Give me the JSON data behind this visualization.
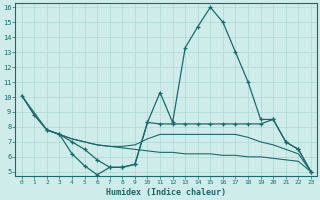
{
  "xlabel": "Humidex (Indice chaleur)",
  "bg_color": "#ceecea",
  "grid_color": "#aed8d5",
  "line_color": "#1a6b6b",
  "xlim": [
    -0.5,
    23.5
  ],
  "ylim": [
    4.7,
    16.3
  ],
  "xticks": [
    0,
    1,
    2,
    3,
    4,
    5,
    6,
    7,
    8,
    9,
    10,
    11,
    12,
    13,
    14,
    15,
    16,
    17,
    18,
    19,
    20,
    21,
    22,
    23
  ],
  "yticks": [
    5,
    6,
    7,
    8,
    9,
    10,
    11,
    12,
    13,
    14,
    15,
    16
  ],
  "lines": [
    {
      "x": [
        0,
        1,
        2,
        3,
        4,
        5,
        6,
        7,
        8,
        9,
        10,
        11,
        12,
        13,
        14,
        15,
        16,
        17,
        18,
        19,
        20,
        21,
        22,
        23
      ],
      "y": [
        10.1,
        8.8,
        7.8,
        7.5,
        6.2,
        5.4,
        4.8,
        5.3,
        5.3,
        5.5,
        8.3,
        10.3,
        8.3,
        13.3,
        14.7,
        16.0,
        15.0,
        13.0,
        11.0,
        8.5,
        8.5,
        7.0,
        6.5,
        5.0
      ],
      "marker": true
    },
    {
      "x": [
        0,
        1,
        2,
        3,
        4,
        5,
        6,
        7,
        8,
        9,
        10,
        11,
        12,
        13,
        14,
        15,
        16,
        17,
        18,
        19,
        20,
        21,
        22,
        23
      ],
      "y": [
        10.1,
        8.8,
        7.8,
        7.5,
        7.2,
        7.0,
        6.8,
        6.7,
        6.6,
        6.5,
        6.4,
        6.3,
        6.3,
        6.2,
        6.2,
        6.2,
        6.1,
        6.1,
        6.0,
        6.0,
        5.9,
        5.8,
        5.7,
        5.0
      ],
      "marker": false
    },
    {
      "x": [
        0,
        2,
        3,
        4,
        5,
        6,
        7,
        8,
        9,
        10,
        11,
        12,
        13,
        14,
        15,
        16,
        17,
        18,
        19,
        20,
        21,
        22,
        23
      ],
      "y": [
        10.1,
        7.8,
        7.5,
        7.2,
        7.0,
        6.8,
        6.7,
        6.7,
        6.8,
        7.2,
        7.5,
        7.5,
        7.5,
        7.5,
        7.5,
        7.5,
        7.5,
        7.3,
        7.0,
        6.8,
        6.5,
        6.2,
        5.0
      ],
      "marker": false
    },
    {
      "x": [
        2,
        3,
        4,
        5,
        6,
        7,
        8,
        9,
        10,
        11,
        12,
        13,
        14,
        15,
        16,
        17,
        18,
        19,
        20,
        21,
        22,
        23
      ],
      "y": [
        7.8,
        7.5,
        7.0,
        6.5,
        5.8,
        5.3,
        5.3,
        5.5,
        8.3,
        8.2,
        8.2,
        8.2,
        8.2,
        8.2,
        8.2,
        8.2,
        8.2,
        8.2,
        8.5,
        7.0,
        6.5,
        5.0
      ],
      "marker": true
    }
  ]
}
